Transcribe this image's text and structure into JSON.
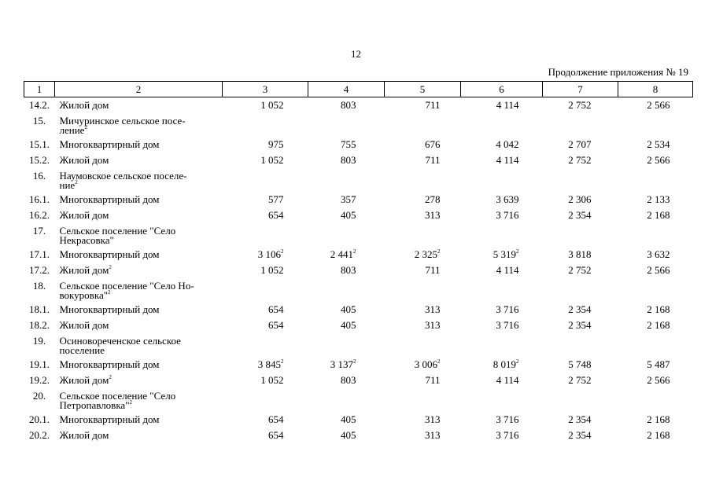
{
  "page_number": "12",
  "continuation": "Продолжение приложения № 19",
  "columns": [
    "1",
    "2",
    "3",
    "4",
    "5",
    "6",
    "7",
    "8"
  ],
  "rows": [
    {
      "type": "data",
      "num": "14.2.",
      "name": "Жилой дом",
      "name_sup": "",
      "values": [
        [
          "1 052",
          ""
        ],
        [
          "803",
          ""
        ],
        [
          "711",
          ""
        ],
        [
          "4 114",
          ""
        ],
        [
          "2 752",
          ""
        ],
        [
          "2 566",
          ""
        ]
      ]
    },
    {
      "type": "title",
      "num": "15.",
      "name_lines": [
        "Мичуринское сельское посе-",
        "ление"
      ],
      "name_sup": "2"
    },
    {
      "type": "data",
      "num": "15.1.",
      "name": "Многоквартирный дом",
      "name_sup": "",
      "values": [
        [
          "975",
          ""
        ],
        [
          "755",
          ""
        ],
        [
          "676",
          ""
        ],
        [
          "4 042",
          ""
        ],
        [
          "2 707",
          ""
        ],
        [
          "2 534",
          ""
        ]
      ]
    },
    {
      "type": "data",
      "num": "15.2.",
      "name": "Жилой дом",
      "name_sup": "",
      "values": [
        [
          "1 052",
          ""
        ],
        [
          "803",
          ""
        ],
        [
          "711",
          ""
        ],
        [
          "4 114",
          ""
        ],
        [
          "2 752",
          ""
        ],
        [
          "2 566",
          ""
        ]
      ]
    },
    {
      "type": "title",
      "num": "16.",
      "name_lines": [
        "Наумовское сельское поселе-",
        "ние"
      ],
      "name_sup": "2"
    },
    {
      "type": "data",
      "num": "16.1.",
      "name": "Многоквартирный дом",
      "name_sup": "",
      "values": [
        [
          "577",
          ""
        ],
        [
          "357",
          ""
        ],
        [
          "278",
          ""
        ],
        [
          "3 639",
          ""
        ],
        [
          "2 306",
          ""
        ],
        [
          "2 133",
          ""
        ]
      ]
    },
    {
      "type": "data",
      "num": "16.2.",
      "name": "Жилой дом",
      "name_sup": "",
      "values": [
        [
          "654",
          ""
        ],
        [
          "405",
          ""
        ],
        [
          "313",
          ""
        ],
        [
          "3 716",
          ""
        ],
        [
          "2 354",
          ""
        ],
        [
          "2 168",
          ""
        ]
      ]
    },
    {
      "type": "title",
      "num": "17.",
      "name_lines": [
        "Сельское поселение \"Село",
        "Некрасовка\""
      ],
      "name_sup": ""
    },
    {
      "type": "data",
      "num": "17.1.",
      "name": "Многоквартирный дом",
      "name_sup": "",
      "values": [
        [
          "3 106",
          "2"
        ],
        [
          "2 441",
          "2"
        ],
        [
          "2 325",
          "2"
        ],
        [
          "5 319",
          "2"
        ],
        [
          "3 818",
          ""
        ],
        [
          "3 632",
          ""
        ]
      ]
    },
    {
      "type": "data",
      "num": "17.2.",
      "name": "Жилой дом",
      "name_sup": "2",
      "values": [
        [
          "1 052",
          ""
        ],
        [
          "803",
          ""
        ],
        [
          "711",
          ""
        ],
        [
          "4 114",
          ""
        ],
        [
          "2 752",
          ""
        ],
        [
          "2 566",
          ""
        ]
      ]
    },
    {
      "type": "title",
      "num": "18.",
      "name_lines": [
        "Сельское поселение \"Село Но-",
        "вокуровка\""
      ],
      "name_sup": "2"
    },
    {
      "type": "data",
      "num": "18.1.",
      "name": "Многоквартирный дом",
      "name_sup": "",
      "values": [
        [
          "654",
          ""
        ],
        [
          "405",
          ""
        ],
        [
          "313",
          ""
        ],
        [
          "3 716",
          ""
        ],
        [
          "2 354",
          ""
        ],
        [
          "2 168",
          ""
        ]
      ]
    },
    {
      "type": "data",
      "num": "18.2.",
      "name": "Жилой дом",
      "name_sup": "",
      "values": [
        [
          "654",
          ""
        ],
        [
          "405",
          ""
        ],
        [
          "313",
          ""
        ],
        [
          "3 716",
          ""
        ],
        [
          "2 354",
          ""
        ],
        [
          "2 168",
          ""
        ]
      ]
    },
    {
      "type": "title",
      "num": "19.",
      "name_lines": [
        "Осиновореченское сельское",
        "поселение"
      ],
      "name_sup": ""
    },
    {
      "type": "data",
      "num": "19.1.",
      "name": "Многоквартирный дом",
      "name_sup": "",
      "values": [
        [
          "3 845",
          "2"
        ],
        [
          "3 137",
          "2"
        ],
        [
          "3 006",
          "2"
        ],
        [
          "8 019",
          "2"
        ],
        [
          "5 748",
          ""
        ],
        [
          "5 487",
          ""
        ]
      ]
    },
    {
      "type": "data",
      "num": "19.2.",
      "name": "Жилой дом",
      "name_sup": "2",
      "values": [
        [
          "1 052",
          ""
        ],
        [
          "803",
          ""
        ],
        [
          "711",
          ""
        ],
        [
          "4 114",
          ""
        ],
        [
          "2 752",
          ""
        ],
        [
          "2 566",
          ""
        ]
      ]
    },
    {
      "type": "title",
      "num": "20.",
      "name_lines": [
        "Сельское поселение \"Село",
        "Петропавловка\""
      ],
      "name_sup": "2"
    },
    {
      "type": "data",
      "num": "20.1.",
      "name": "Многоквартирный дом",
      "name_sup": "",
      "values": [
        [
          "654",
          ""
        ],
        [
          "405",
          ""
        ],
        [
          "313",
          ""
        ],
        [
          "3 716",
          ""
        ],
        [
          "2 354",
          ""
        ],
        [
          "2 168",
          ""
        ]
      ]
    },
    {
      "type": "data",
      "num": "20.2.",
      "name": "Жилой дом",
      "name_sup": "",
      "values": [
        [
          "654",
          ""
        ],
        [
          "405",
          ""
        ],
        [
          "313",
          ""
        ],
        [
          "3 716",
          ""
        ],
        [
          "2 354",
          ""
        ],
        [
          "2 168",
          ""
        ]
      ]
    }
  ]
}
